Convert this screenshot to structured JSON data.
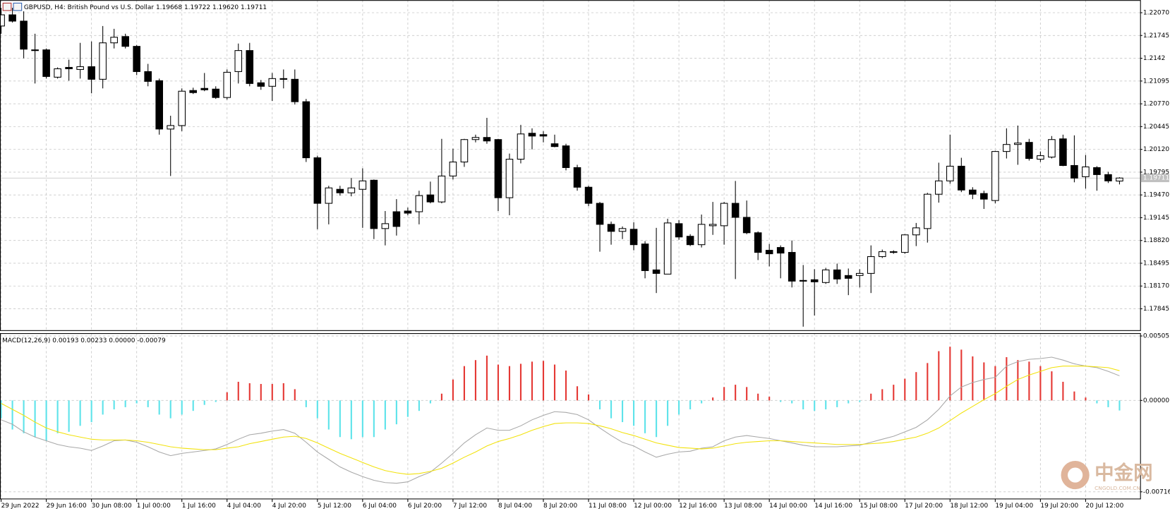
{
  "chart_data": [
    {
      "type": "candlestick",
      "title": "GBPUSD, H4:  British Pound vs U.S. Dollar  1.19668 1.19722 1.19620 1.19711",
      "categories": [
        "29 Jun 2022",
        null,
        null,
        null,
        "29 Jun 16:00",
        null,
        null,
        null,
        "30 Jun 08:00",
        null,
        null,
        null,
        "1 Jul 00:00",
        null,
        null,
        null,
        "1 Jul 16:00",
        null,
        null,
        null,
        "4 Jul 04:00",
        null,
        null,
        null,
        "4 Jul 20:00",
        null,
        null,
        null,
        "5 Jul 12:00",
        null,
        null,
        null,
        "6 Jul 04:00",
        null,
        null,
        null,
        "6 Jul 20:00",
        null,
        null,
        null,
        "7 Jul 12:00",
        null,
        null,
        null,
        "8 Jul 04:00",
        null,
        null,
        null,
        "8 Jul 20:00",
        null,
        null,
        null,
        "11 Jul 08:00",
        null,
        null,
        null,
        "12 Jul 00:00",
        null,
        null,
        null,
        "12 Jul 16:00",
        null,
        null,
        null,
        "13 Jul 08:00",
        null,
        null,
        null,
        "14 Jul 00:00",
        null,
        null,
        null,
        "14 Jul 16:00",
        null,
        null,
        null,
        "15 Jul 08:00",
        null,
        null,
        null,
        "17 Jul 20:00",
        null,
        null,
        null,
        "18 Jul 12:00",
        null,
        null,
        null,
        "19 Jul 04:00",
        null,
        null,
        null,
        "19 Jul 20:00",
        null,
        null,
        null,
        "20 Jul 12:00",
        null,
        null,
        null
      ],
      "open": [
        1.2188,
        1.2204,
        1.2195,
        1.2154,
        1.2154,
        1.2115,
        1.2129,
        1.2126,
        1.213,
        1.2112,
        1.2164,
        1.2173,
        1.2159,
        1.2123,
        1.211,
        1.2041,
        1.2046,
        1.2096,
        1.2099,
        1.2098,
        1.2086,
        1.2123,
        1.2153,
        1.2107,
        1.2102,
        1.2113,
        1.2112,
        1.208,
        1.2,
        1.1935,
        1.1955,
        1.195,
        1.1955,
        1.1968,
        1.1899,
        1.1923,
        1.1924,
        1.1923,
        1.1947,
        1.1937,
        1.1974,
        1.1994,
        1.2026,
        1.2029,
        1.2026,
        1.1943,
        1.1998,
        1.2035,
        1.2033,
        1.202,
        1.2017,
        1.1986,
        1.1958,
        1.1935,
        1.1905,
        1.1895,
        1.1898,
        1.1877,
        1.184,
        1.1834,
        1.1906,
        1.1888,
        1.1876,
        1.1903,
        1.1903,
        1.1935,
        1.1915,
        1.1893,
        1.1868,
        1.1872,
        1.1865,
        1.1825,
        1.1826,
        1.1822,
        1.184,
        1.1832,
        1.1832,
        1.1835,
        1.1859,
        1.1865,
        1.1865,
        1.189,
        1.1899,
        1.1948,
        1.1967,
        1.1988,
        1.1954,
        1.1949,
        1.1939,
        1.2009,
        1.2019,
        1.2022,
        1.1998,
        1.2001,
        1.2027,
        1.1989,
        1.1973,
        1.1986,
        1.1976,
        1.19668
      ],
      "high": [
        1.2214,
        1.2214,
        1.2209,
        1.2177,
        1.2156,
        1.2129,
        1.214,
        1.2164,
        1.2166,
        1.2188,
        1.2184,
        1.2177,
        1.2161,
        1.2134,
        1.2113,
        1.206,
        1.2099,
        1.21,
        1.2121,
        1.2102,
        1.2126,
        1.2163,
        1.2164,
        1.2111,
        1.2121,
        1.2126,
        1.2126,
        1.2084,
        1.2003,
        1.196,
        1.196,
        1.1971,
        1.1985,
        1.1969,
        1.1924,
        1.1941,
        1.1929,
        1.1953,
        1.1966,
        1.2027,
        1.2013,
        1.2027,
        1.2033,
        1.2057,
        1.2027,
        1.2006,
        1.2047,
        1.2042,
        1.2038,
        1.2033,
        1.202,
        1.199,
        1.196,
        1.1937,
        1.1909,
        1.1902,
        1.1908,
        1.1881,
        1.19,
        1.1913,
        1.1911,
        1.1891,
        1.1919,
        1.1937,
        1.1937,
        1.1967,
        1.1939,
        1.1895,
        1.1877,
        1.1875,
        1.1882,
        1.1847,
        1.1841,
        1.1843,
        1.1849,
        1.1842,
        1.1841,
        1.1875,
        1.1869,
        1.1868,
        1.1891,
        1.1907,
        1.195,
        1.1993,
        1.2033,
        1.2,
        1.1958,
        1.1953,
        1.201,
        1.2042,
        1.2046,
        1.2027,
        1.2009,
        1.2031,
        1.2033,
        1.2032,
        1.2004,
        1.1988,
        1.198,
        1.19722
      ],
      "low": [
        1.2177,
        1.2193,
        1.2142,
        1.2106,
        1.2113,
        1.2113,
        1.211,
        1.2113,
        1.2092,
        1.2099,
        1.2156,
        1.2156,
        1.2118,
        1.2102,
        1.2033,
        1.1974,
        1.2038,
        1.2091,
        1.2095,
        1.2084,
        1.2083,
        1.2106,
        1.2102,
        1.2097,
        1.2081,
        1.2099,
        1.2076,
        1.1994,
        1.1898,
        1.1905,
        1.1946,
        1.1945,
        1.19,
        1.1884,
        1.1875,
        1.1889,
        1.1918,
        1.1905,
        1.1935,
        1.1935,
        1.1969,
        1.1987,
        1.2022,
        1.202,
        1.1924,
        1.1918,
        1.1992,
        1.2012,
        1.2022,
        1.2015,
        1.1982,
        1.1953,
        1.1931,
        1.1866,
        1.1876,
        1.1884,
        1.1868,
        1.1828,
        1.1807,
        1.1834,
        1.1883,
        1.1874,
        1.1872,
        1.189,
        1.1876,
        1.1827,
        1.1891,
        1.1854,
        1.1845,
        1.1828,
        1.1815,
        1.1759,
        1.1775,
        1.182,
        1.182,
        1.1804,
        1.1815,
        1.1807,
        1.1857,
        1.1863,
        1.1863,
        1.1874,
        1.1879,
        1.1936,
        1.1963,
        1.1951,
        1.1941,
        1.1927,
        1.1935,
        1.1999,
        1.199,
        1.1996,
        1.1994,
        1.1999,
        1.1988,
        1.1965,
        1.1956,
        1.1953,
        1.1964,
        1.1962
      ],
      "close": [
        1.2204,
        1.2195,
        1.2155,
        1.2153,
        1.2116,
        1.2127,
        1.2127,
        1.213,
        1.2112,
        1.2164,
        1.2172,
        1.2159,
        1.2123,
        1.2109,
        1.2041,
        1.2046,
        1.2095,
        1.2093,
        1.2097,
        1.2086,
        1.2122,
        1.2153,
        1.2106,
        1.2102,
        1.2113,
        1.2112,
        1.208,
        1.2,
        1.1935,
        1.1957,
        1.195,
        1.1957,
        1.1967,
        1.1899,
        1.1906,
        1.1902,
        1.1921,
        1.1946,
        1.1937,
        1.1974,
        1.1994,
        1.2026,
        1.2029,
        1.2024,
        1.1943,
        1.1998,
        1.2034,
        1.2031,
        1.2031,
        1.2016,
        1.1986,
        1.1958,
        1.1935,
        1.1905,
        1.1895,
        1.1899,
        1.1876,
        1.1839,
        1.1835,
        1.1907,
        1.1887,
        1.1876,
        1.1905,
        1.1905,
        1.1935,
        1.1915,
        1.1893,
        1.1865,
        1.1863,
        1.1864,
        1.1824,
        1.1824,
        1.1823,
        1.184,
        1.1827,
        1.1828,
        1.1835,
        1.1859,
        1.1866,
        1.1866,
        1.189,
        1.19,
        1.1948,
        1.1967,
        1.1988,
        1.1954,
        1.1948,
        1.1941,
        1.2009,
        1.2019,
        1.2021,
        1.1999,
        1.2003,
        1.2026,
        1.1989,
        1.1971,
        1.1987,
        1.1976,
        1.1967,
        1.19711
      ],
      "up_color": "#ffffff",
      "down_color": "#000000",
      "wick_color": "#000000",
      "ylim": [
        1.1754,
        1.2225
      ],
      "yticks": [
        {
          "value": 1.2207,
          "label": "1.22070"
        },
        1.21745,
        1.2142,
        1.21095,
        {
          "value": 1.2077,
          "label": "1.20770"
        },
        1.20445,
        {
          "value": 1.2012,
          "label": "1.20120"
        },
        1.19795,
        {
          "value": 1.1947,
          "label": "1.19470"
        },
        1.19145,
        {
          "value": 1.1882,
          "label": "1.18820"
        },
        1.18495,
        {
          "value": 1.1817,
          "label": "1.18170"
        },
        1.17845
      ],
      "current_price": 1.19711,
      "grid": true,
      "watermark": "中金网",
      "watermark_url": "CNGOLD.COM.CN"
    },
    {
      "type": "macd",
      "title": "MACD(12,26,9) 0.00193 0.00233 0.00000 -0.00079",
      "series": [
        {
          "style": "histogram",
          "color": "#e53935",
          "negative_color": "#5ee3ea",
          "values": [
            -0.0014,
            -0.00228,
            -0.00257,
            -0.00287,
            -0.00316,
            -0.00257,
            -0.00246,
            -0.00199,
            -0.0017,
            -0.00111,
            -0.0007,
            -0.00053,
            -0.00023,
            -0.00053,
            -0.00111,
            -0.0014,
            -0.00111,
            -0.00082,
            -0.00035,
            -0.00012,
            0.00064,
            0.00146,
            0.00135,
            0.00129,
            0.00129,
            0.00135,
            0.00088,
            -0.00053,
            -0.0014,
            -0.00228,
            -0.00287,
            -0.00304,
            -0.00287,
            -0.00287,
            -0.00228,
            -0.00187,
            -0.00129,
            -0.00082,
            -0.00023,
            0.00053,
            0.00164,
            0.00269,
            0.00316,
            0.00351,
            0.00281,
            0.00269,
            0.00287,
            0.00304,
            0.0031,
            0.00281,
            0.00234,
            0.00111,
            0.00047,
            -0.0007,
            -0.0014,
            -0.0017,
            -0.00199,
            -0.00257,
            -0.00287,
            -0.00199,
            -0.00111,
            -0.0007,
            -0.00023,
            0.00023,
            0.00105,
            0.00123,
            0.00105,
            0.00053,
            0.00029,
            -0.00012,
            -0.00023,
            -0.0007,
            -0.00082,
            -0.0007,
            -0.00053,
            -0.00023,
            -0.00012,
            0.00053,
            0.00088,
            0.00123,
            0.0017,
            0.00222,
            0.00293,
            0.00386,
            0.00421,
            0.00398,
            0.00345,
            0.00298,
            0.00269,
            0.00339,
            0.00316,
            0.00304,
            0.00269,
            0.00228,
            0.00146,
            0.0007,
            0.00023,
            -0.00023,
            -0.00053,
            -0.00079
          ]
        },
        {
          "style": "line",
          "color": "#a8a8a8",
          "values": [
            -0.00152,
            -0.00187,
            -0.00246,
            -0.00287,
            -0.00316,
            -0.00345,
            -0.00363,
            -0.00374,
            -0.00392,
            -0.00357,
            -0.00316,
            -0.0031,
            -0.00328,
            -0.00363,
            -0.00404,
            -0.00433,
            -0.00415,
            -0.00404,
            -0.00392,
            -0.0038,
            -0.00345,
            -0.00304,
            -0.00269,
            -0.00257,
            -0.0024,
            -0.00228,
            -0.00257,
            -0.00328,
            -0.00404,
            -0.00462,
            -0.00521,
            -0.00562,
            -0.00597,
            -0.00626,
            -0.00644,
            -0.00649,
            -0.00638,
            -0.00597,
            -0.00562,
            -0.00491,
            -0.00415,
            -0.00333,
            -0.00269,
            -0.00216,
            -0.00234,
            -0.00234,
            -0.00199,
            -0.00152,
            -0.00117,
            -0.00088,
            -0.00094,
            -0.00111,
            -0.00152,
            -0.00216,
            -0.00275,
            -0.00328,
            -0.00357,
            -0.00404,
            -0.00445,
            -0.00421,
            -0.00404,
            -0.00398,
            -0.00374,
            -0.00363,
            -0.00316,
            -0.00287,
            -0.00275,
            -0.00287,
            -0.00298,
            -0.00316,
            -0.00333,
            -0.00351,
            -0.00363,
            -0.00363,
            -0.00363,
            -0.00357,
            -0.00351,
            -0.00328,
            -0.00304,
            -0.00281,
            -0.00246,
            -0.00211,
            -0.00152,
            -0.0007,
            0.00035,
            0.00105,
            0.0014,
            0.00164,
            0.00181,
            0.00269,
            0.00304,
            0.00322,
            0.00328,
            0.00339,
            0.00316,
            0.00287,
            0.00269,
            0.00257,
            0.00228,
            0.00193
          ]
        },
        {
          "style": "line",
          "color": "#f2e20c",
          "values": [
            -0.00023,
            -0.0007,
            -0.00117,
            -0.0017,
            -0.00216,
            -0.00246,
            -0.00269,
            -0.00287,
            -0.00304,
            -0.0031,
            -0.0031,
            -0.0031,
            -0.00316,
            -0.00328,
            -0.00345,
            -0.00363,
            -0.00374,
            -0.0038,
            -0.00386,
            -0.00386,
            -0.00374,
            -0.00363,
            -0.00339,
            -0.00322,
            -0.00304,
            -0.00287,
            -0.00281,
            -0.00298,
            -0.00333,
            -0.00374,
            -0.00415,
            -0.0045,
            -0.00486,
            -0.00521,
            -0.0055,
            -0.00567,
            -0.00579,
            -0.00573,
            -0.00556,
            -0.00532,
            -0.00491,
            -0.00445,
            -0.00404,
            -0.00357,
            -0.00322,
            -0.00298,
            -0.00269,
            -0.00234,
            -0.00205,
            -0.00181,
            -0.00176,
            -0.00176,
            -0.00181,
            -0.00199,
            -0.00222,
            -0.00252,
            -0.00275,
            -0.00304,
            -0.00333,
            -0.00351,
            -0.00369,
            -0.00374,
            -0.0038,
            -0.00374,
            -0.00357,
            -0.00339,
            -0.00328,
            -0.00322,
            -0.00316,
            -0.00316,
            -0.00322,
            -0.00328,
            -0.00333,
            -0.00339,
            -0.00345,
            -0.00345,
            -0.00345,
            -0.00339,
            -0.00333,
            -0.00322,
            -0.00304,
            -0.00287,
            -0.00257,
            -0.00216,
            -0.00158,
            -0.00099,
            -0.00047,
            6e-05,
            0.00053,
            0.00111,
            0.00164,
            0.00199,
            0.00228,
            0.00257,
            0.00269,
            0.00269,
            0.00269,
            0.00263,
            0.00257,
            0.00233
          ]
        }
      ],
      "ylim": [
        -0.00772,
        0.00527
      ],
      "yticks": [
        0.00505,
        {
          "value": 0,
          "label": "0.00000"
        },
        -0.00716
      ],
      "grid": true
    }
  ]
}
